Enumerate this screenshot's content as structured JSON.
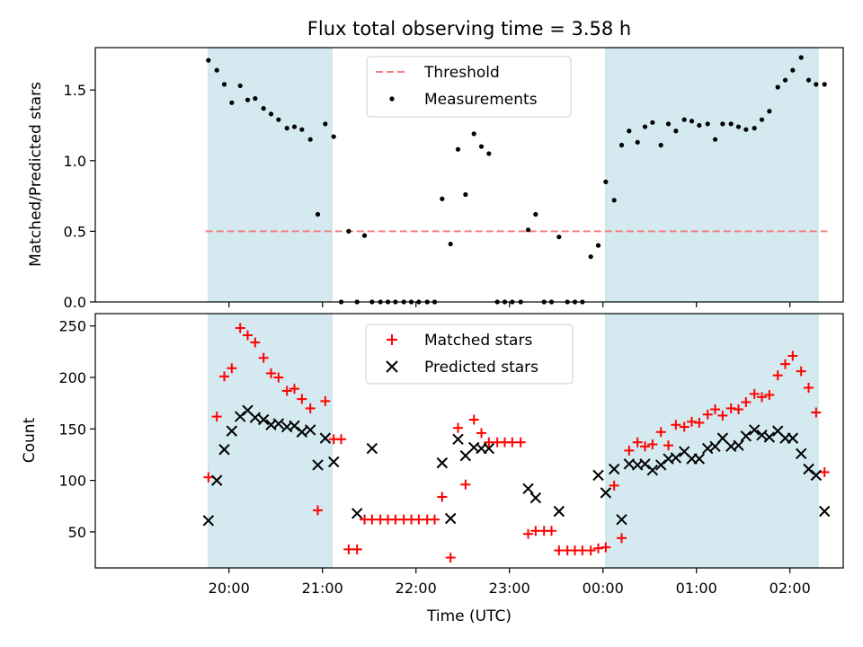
{
  "chart_data": {
    "title": "Flux total observing time = 3.58 h",
    "xlabel": "Time (UTC)",
    "x_tick_labels": [
      "20:00",
      "21:00",
      "22:00",
      "23:00",
      "00:00",
      "01:00",
      "02:00"
    ],
    "x_range_hours": [
      18.57,
      26.57
    ],
    "shaded_spans": [
      [
        19.78,
        21.1
      ],
      [
        24.03,
        26.3
      ]
    ],
    "span_color": "#d4eaf0",
    "panels": [
      {
        "type": "scatter",
        "ylabel": "Matched/Predicted stars",
        "ylim": [
          0,
          1.8
        ],
        "yticks": [
          "0.0",
          "0.5",
          "1.0",
          "1.5"
        ],
        "yticks_values": [
          0,
          0.5,
          1.0,
          1.5
        ],
        "threshold": {
          "name": "Threshold",
          "value": 0.5,
          "color": "#f08080"
        },
        "legend": [
          "Threshold",
          "Measurements"
        ],
        "series": [
          {
            "name": "Measurements",
            "marker": "dot",
            "color": "#000000",
            "x": [
              19.78,
              19.87,
              19.95,
              20.03,
              20.12,
              20.2,
              20.28,
              20.37,
              20.45,
              20.53,
              20.62,
              20.7,
              20.78,
              20.87,
              20.95,
              21.03,
              21.12,
              21.2,
              21.28,
              21.37,
              21.45,
              21.53,
              21.62,
              21.7,
              21.78,
              21.87,
              21.95,
              22.03,
              22.12,
              22.2,
              22.28,
              22.37,
              22.45,
              22.53,
              22.62,
              22.7,
              22.78,
              22.87,
              22.95,
              23.03,
              23.12,
              23.2,
              23.28,
              23.37,
              23.45,
              23.53,
              23.62,
              23.7,
              23.78,
              23.87,
              23.95,
              24.03,
              24.12,
              24.2,
              24.28,
              24.37,
              24.45,
              24.53,
              24.62,
              24.7,
              24.78,
              24.87,
              24.95,
              25.03,
              25.12,
              25.2,
              25.28,
              25.37,
              25.45,
              25.53,
              25.62,
              25.7,
              25.78,
              25.87,
              25.95,
              26.03,
              26.12,
              26.2,
              26.28,
              26.37
            ],
            "y": [
              1.71,
              1.64,
              1.54,
              1.41,
              1.53,
              1.43,
              1.44,
              1.37,
              1.33,
              1.29,
              1.23,
              1.24,
              1.22,
              1.15,
              0.62,
              1.26,
              1.17,
              0.0,
              0.5,
              0.0,
              0.47,
              0.0,
              0.0,
              0.0,
              0.0,
              0.0,
              0.0,
              0.0,
              0.0,
              0.0,
              0.73,
              0.41,
              1.08,
              0.76,
              1.19,
              1.1,
              1.05,
              0.0,
              0.0,
              0.0,
              0.0,
              0.51,
              0.62,
              0.0,
              0.0,
              0.46,
              0.0,
              0.0,
              0.0,
              0.32,
              0.4,
              0.85,
              0.72,
              1.11,
              1.21,
              1.13,
              1.24,
              1.27,
              1.11,
              1.26,
              1.21,
              1.29,
              1.28,
              1.25,
              1.26,
              1.15,
              1.26,
              1.26,
              1.24,
              1.22,
              1.23,
              1.29,
              1.35,
              1.52,
              1.57,
              1.64,
              1.73,
              1.57,
              1.54,
              1.54
            ]
          }
        ]
      },
      {
        "type": "scatter",
        "ylabel": "Count",
        "ylim": [
          15,
          262
        ],
        "yticks": [
          "50",
          "100",
          "150",
          "200",
          "250"
        ],
        "yticks_values": [
          50,
          100,
          150,
          200,
          250
        ],
        "legend": [
          "Matched stars",
          "Predicted stars"
        ],
        "series": [
          {
            "name": "Matched stars",
            "marker": "plus",
            "color": "#ff0000",
            "x": [
              19.78,
              19.87,
              19.95,
              20.03,
              20.12,
              20.2,
              20.28,
              20.37,
              20.45,
              20.53,
              20.62,
              20.7,
              20.78,
              20.87,
              20.95,
              21.03,
              21.12,
              21.2,
              21.28,
              21.37,
              21.45,
              21.53,
              21.62,
              21.7,
              21.78,
              21.87,
              21.95,
              22.03,
              22.12,
              22.2,
              22.28,
              22.37,
              22.45,
              22.53,
              22.62,
              22.7,
              22.78,
              22.87,
              22.95,
              23.03,
              23.12,
              23.2,
              23.28,
              23.37,
              23.45,
              23.53,
              23.62,
              23.7,
              23.78,
              23.87,
              23.95,
              24.03,
              24.12,
              24.2,
              24.28,
              24.37,
              24.45,
              24.53,
              24.62,
              24.7,
              24.78,
              24.87,
              24.95,
              25.03,
              25.12,
              25.2,
              25.28,
              25.37,
              25.45,
              25.53,
              25.62,
              25.7,
              25.78,
              25.87,
              25.95,
              26.03,
              26.12,
              26.2,
              26.28,
              26.37
            ],
            "y": [
              103,
              162,
              201,
              209,
              248,
              241,
              234,
              219,
              204,
              200,
              187,
              189,
              179,
              170,
              71,
              177,
              140,
              140,
              33,
              33,
              62,
              62,
              62,
              62,
              62,
              62,
              62,
              62,
              62,
              62,
              84,
              25,
              151,
              96,
              159,
              146,
              137,
              137,
              137,
              137,
              137,
              48,
              51,
              51,
              51,
              32,
              32,
              32,
              32,
              32,
              34,
              35,
              95,
              44,
              129,
              137,
              133,
              135,
              147,
              134,
              154,
              152,
              157,
              156,
              164,
              169,
              163,
              170,
              169,
              176,
              184,
              181,
              183,
              202,
              213,
              221,
              206,
              190,
              166,
              108
            ]
          },
          {
            "name": "Predicted stars",
            "marker": "x",
            "color": "#000000",
            "x": [
              19.78,
              19.87,
              19.95,
              20.03,
              20.12,
              20.2,
              20.28,
              20.37,
              20.45,
              20.53,
              20.62,
              20.7,
              20.78,
              20.87,
              20.95,
              21.03,
              21.12,
              21.37,
              21.53,
              22.28,
              22.37,
              22.45,
              22.53,
              22.62,
              22.7,
              22.78,
              23.2,
              23.28,
              23.53,
              23.95,
              24.03,
              24.12,
              24.2,
              24.28,
              24.37,
              24.45,
              24.53,
              24.62,
              24.7,
              24.78,
              24.87,
              24.95,
              25.03,
              25.12,
              25.2,
              25.28,
              25.37,
              25.45,
              25.53,
              25.62,
              25.7,
              25.78,
              25.87,
              25.95,
              26.03,
              26.12,
              26.2,
              26.28,
              26.37
            ],
            "y": [
              61,
              100,
              130,
              148,
              162,
              168,
              161,
              159,
              154,
              155,
              152,
              153,
              147,
              149,
              115,
              141,
              118,
              68,
              131,
              117,
              63,
              140,
              124,
              132,
              131,
              131,
              92,
              83,
              70,
              105,
              88,
              111,
              62,
              116,
              115,
              116,
              110,
              115,
              121,
              122,
              128,
              121,
              121,
              131,
              133,
              141,
              133,
              134,
              143,
              149,
              144,
              142,
              148,
              141,
              141,
              126,
              111,
              105,
              70
            ]
          }
        ]
      }
    ]
  }
}
